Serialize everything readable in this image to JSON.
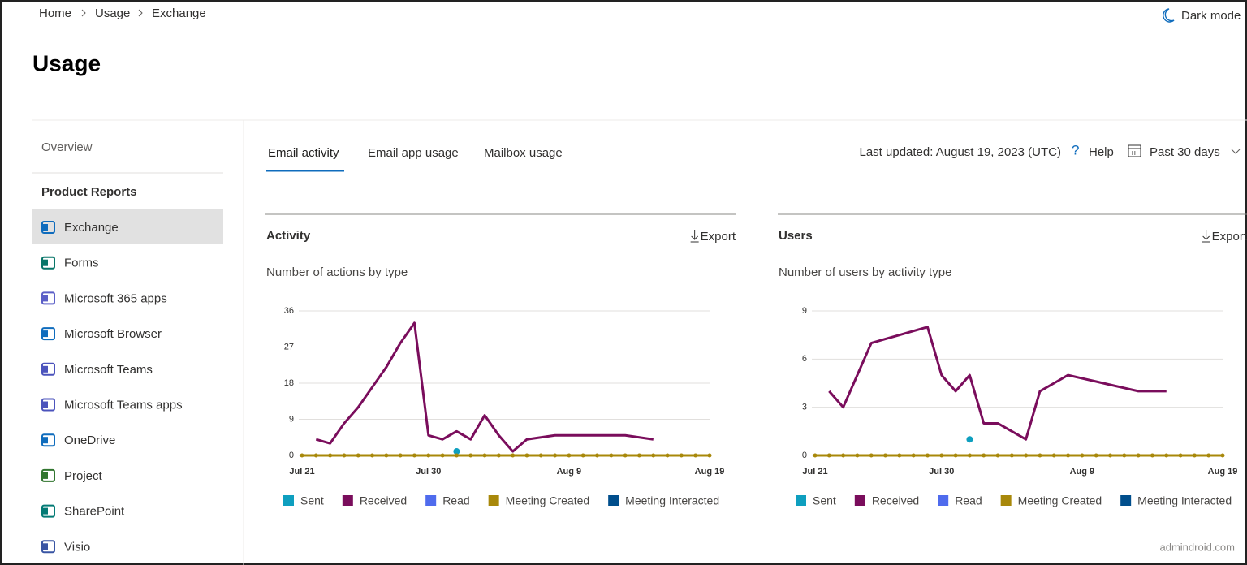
{
  "breadcrumb": [
    "Home",
    "Usage",
    "Exchange"
  ],
  "dark_mode": "Dark mode",
  "page_title": "Usage",
  "sidebar": {
    "overview": "Overview",
    "section": "Product Reports",
    "items": [
      "Exchange",
      "Forms",
      "Microsoft 365 apps",
      "Microsoft Browser",
      "Microsoft Teams",
      "Microsoft Teams apps",
      "OneDrive",
      "Project",
      "SharePoint",
      "Visio"
    ]
  },
  "tabs": [
    "Email activity",
    "Email app usage",
    "Mailbox usage"
  ],
  "last_updated": "Last updated: August 19, 2023 (UTC)",
  "help_icon": "?",
  "help": "Help",
  "range": "Past 30 days",
  "chart_data": [
    {
      "type": "line",
      "title": "Activity",
      "export": "Export",
      "subtitle": "Number of actions by type",
      "categories": [
        "Jul 21",
        null,
        null,
        null,
        null,
        null,
        null,
        null,
        null,
        "Jul 30",
        null,
        null,
        null,
        null,
        null,
        null,
        null,
        null,
        null,
        "Aug 9",
        null,
        null,
        null,
        null,
        null,
        null,
        null,
        null,
        null,
        "Aug 19"
      ],
      "ylim": [
        0,
        36
      ],
      "yticks": [
        0,
        9,
        18,
        27,
        36
      ],
      "grid": true,
      "series": [
        {
          "name": "Sent",
          "color": "#0e9fbf",
          "values": [
            null,
            null,
            null,
            null,
            null,
            null,
            null,
            null,
            null,
            null,
            null,
            1,
            null,
            null,
            null,
            null,
            null,
            null,
            null,
            null,
            null,
            null,
            null,
            null,
            null,
            null,
            null,
            null,
            null,
            null
          ]
        },
        {
          "name": "Received",
          "color": "#7a0d5c",
          "values": [
            null,
            4,
            3,
            8,
            12,
            17,
            22,
            28,
            33,
            5,
            4,
            6,
            4,
            10,
            5,
            1,
            4,
            4.5,
            5,
            5,
            5,
            5,
            5,
            5,
            4.5,
            4,
            null,
            null,
            null,
            null
          ]
        },
        {
          "name": "Read",
          "color": "#4f6bed",
          "values": [
            0,
            0,
            0,
            0,
            0,
            0,
            0,
            0,
            0,
            0,
            0,
            0,
            0,
            0,
            0,
            0,
            0,
            0,
            0,
            0,
            0,
            0,
            0,
            0,
            0,
            0,
            0,
            0,
            0,
            0
          ]
        },
        {
          "name": "Meeting Interacted",
          "color": "#004e8c",
          "values": [
            0,
            0,
            0,
            0,
            0,
            0,
            0,
            0,
            0,
            0,
            0,
            0,
            0,
            0,
            0,
            0,
            0,
            0,
            0,
            0,
            0,
            0,
            0,
            0,
            0,
            0,
            0,
            0,
            0,
            0
          ]
        },
        {
          "name": "Meeting Created",
          "color": "#a8880a",
          "values": [
            0,
            0,
            0,
            0,
            0,
            0,
            0,
            0,
            0,
            0,
            0,
            0,
            0,
            0,
            0,
            0,
            0,
            0,
            0,
            0,
            0,
            0,
            0,
            0,
            0,
            0,
            0,
            0,
            0,
            0
          ]
        }
      ]
    },
    {
      "type": "line",
      "title": "Users",
      "export": "Export",
      "subtitle": "Number of users by activity type",
      "categories": [
        "Jul 21",
        null,
        null,
        null,
        null,
        null,
        null,
        null,
        null,
        "Jul 30",
        null,
        null,
        null,
        null,
        null,
        null,
        null,
        null,
        null,
        "Aug 9",
        null,
        null,
        null,
        null,
        null,
        null,
        null,
        null,
        null,
        "Aug 19"
      ],
      "ylim": [
        0,
        9
      ],
      "yticks": [
        0,
        3,
        6,
        9
      ],
      "grid": true,
      "series": [
        {
          "name": "Sent",
          "color": "#0e9fbf",
          "values": [
            null,
            null,
            null,
            null,
            null,
            null,
            null,
            null,
            null,
            null,
            null,
            1,
            null,
            null,
            null,
            null,
            null,
            null,
            null,
            null,
            null,
            null,
            null,
            null,
            null,
            null,
            null,
            null,
            null,
            null
          ]
        },
        {
          "name": "Received",
          "color": "#7a0d5c",
          "values": [
            null,
            4,
            3,
            5,
            7,
            7.25,
            7.5,
            7.75,
            8,
            5,
            4,
            5,
            2,
            2,
            1.5,
            1,
            4,
            4.5,
            5,
            4.8,
            4.6,
            4.4,
            4.2,
            4,
            4,
            4,
            null,
            null,
            null,
            null
          ]
        },
        {
          "name": "Read",
          "color": "#4f6bed",
          "values": [
            0,
            0,
            0,
            0,
            0,
            0,
            0,
            0,
            0,
            0,
            0,
            0,
            0,
            0,
            0,
            0,
            0,
            0,
            0,
            0,
            0,
            0,
            0,
            0,
            0,
            0,
            0,
            0,
            0,
            0
          ]
        },
        {
          "name": "Meeting Interacted",
          "color": "#004e8c",
          "values": [
            0,
            0,
            0,
            0,
            0,
            0,
            0,
            0,
            0,
            0,
            0,
            0,
            0,
            0,
            0,
            0,
            0,
            0,
            0,
            0,
            0,
            0,
            0,
            0,
            0,
            0,
            0,
            0,
            0,
            0
          ]
        },
        {
          "name": "Meeting Created",
          "color": "#a8880a",
          "values": [
            0,
            0,
            0,
            0,
            0,
            0,
            0,
            0,
            0,
            0,
            0,
            0,
            0,
            0,
            0,
            0,
            0,
            0,
            0,
            0,
            0,
            0,
            0,
            0,
            0,
            0,
            0,
            0,
            0,
            0
          ]
        }
      ]
    }
  ],
  "watermark": "admindroid.com"
}
